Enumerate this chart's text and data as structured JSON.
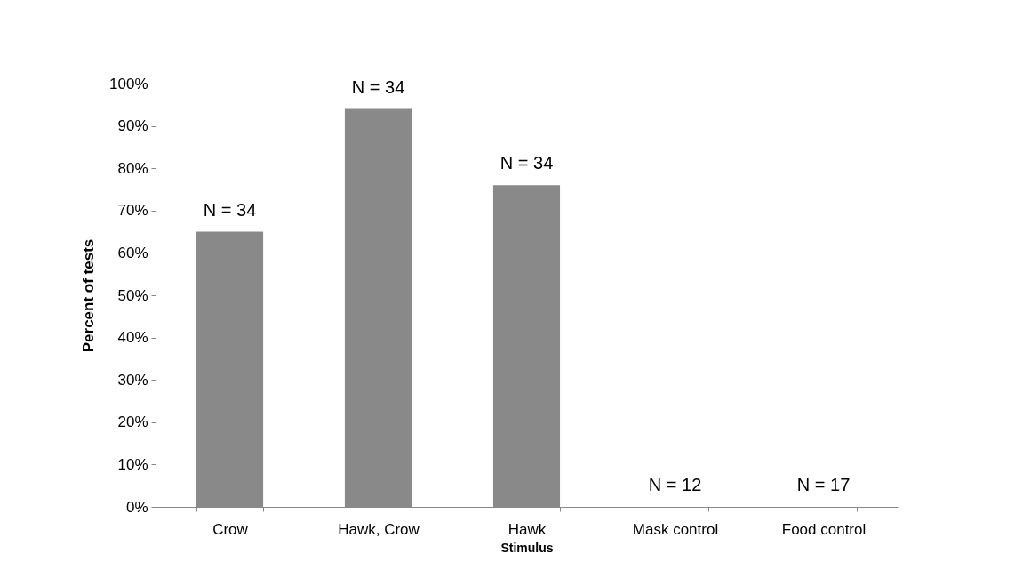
{
  "chart_data": {
    "type": "bar",
    "xlabel": "Stimulus",
    "ylabel": "Percent of tests",
    "categories": [
      "Crow",
      "Hawk, Crow",
      "Hawk",
      "Mask control",
      "Food control"
    ],
    "values": [
      65,
      94,
      76,
      0,
      0
    ],
    "annotations": [
      {
        "text": "N = 34",
        "x": "Crow",
        "y": 65
      },
      {
        "text": "N = 34",
        "x": "Hawk, Crow",
        "y": 94
      },
      {
        "text": "N = 34",
        "x": "Hawk",
        "y": 76
      },
      {
        "text": "N = 12",
        "x": "Mask control",
        "y": 0
      },
      {
        "text": "N = 17",
        "x": "Food control",
        "y": 0
      }
    ],
    "color": "#898989",
    "ylim": [
      0,
      100
    ],
    "yticks": [
      {
        "value": 0,
        "label": "0%"
      },
      {
        "value": 10,
        "label": "10%"
      },
      {
        "value": 20,
        "label": "20%"
      },
      {
        "value": 30,
        "label": "30%"
      },
      {
        "value": 40,
        "label": "40%"
      },
      {
        "value": 50,
        "label": "50%"
      },
      {
        "value": 60,
        "label": "60%"
      },
      {
        "value": 70,
        "label": "70%"
      },
      {
        "value": 80,
        "label": "80%"
      },
      {
        "value": 90,
        "label": "90%"
      },
      {
        "value": 100,
        "label": "100%"
      }
    ],
    "grid": false
  }
}
